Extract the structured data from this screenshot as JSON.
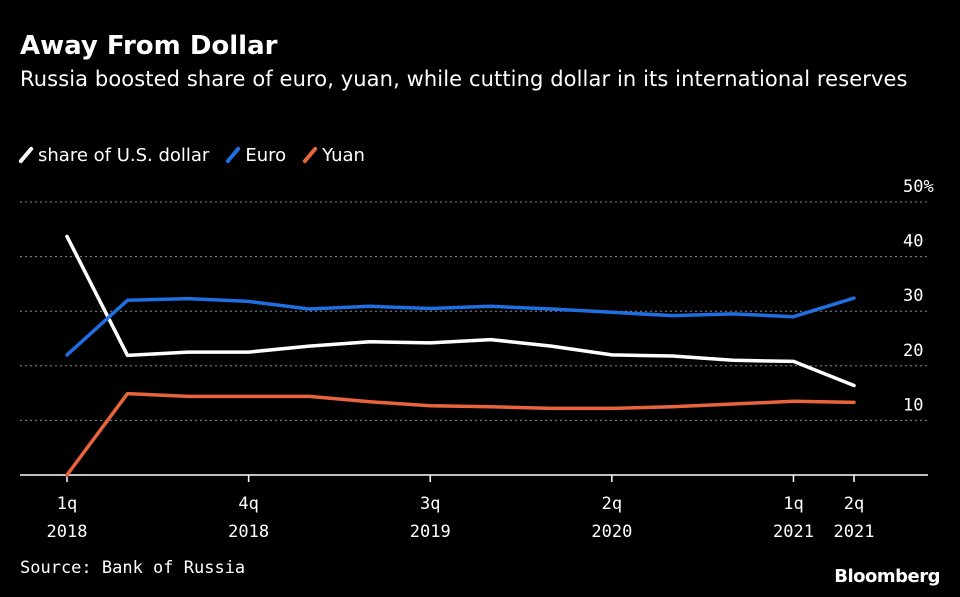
{
  "header": {
    "title": "Away From Dollar",
    "subtitle": "Russia boosted share of euro, yuan, while cutting dollar in its international reserves"
  },
  "legend": [
    {
      "label": "share of U.S. dollar",
      "color": "#ffffff"
    },
    {
      "label": "Euro",
      "color": "#1f6fe0"
    },
    {
      "label": "Yuan",
      "color": "#e8643c"
    }
  ],
  "footer": {
    "source": "Source: Bank of Russia",
    "brand": "Bloomberg"
  },
  "chart_data": {
    "type": "line",
    "x": [
      "1q 2018",
      "2q 2018",
      "3q 2018",
      "4q 2018",
      "1q 2019",
      "2q 2019",
      "3q 2019",
      "4q 2019",
      "1q 2020",
      "2q 2020",
      "3q 2020",
      "4q 2020",
      "1q 2021",
      "2q 2021"
    ],
    "xticks": [
      {
        "top": "1q",
        "bottom": "2018",
        "index": 0
      },
      {
        "top": "4q",
        "bottom": "2018",
        "index": 3
      },
      {
        "top": "3q",
        "bottom": "2019",
        "index": 6
      },
      {
        "top": "2q",
        "bottom": "2020",
        "index": 9
      },
      {
        "top": "1q",
        "bottom": "2021",
        "index": 12
      },
      {
        "top": "2q",
        "bottom": "2021",
        "index": 13
      }
    ],
    "yticks": [
      "10",
      "20",
      "30",
      "40",
      "50%"
    ],
    "ylim": [
      0,
      50
    ],
    "grid": true,
    "legend_position": "top-left",
    "series": [
      {
        "name": "share of U.S. dollar",
        "color": "#ffffff",
        "values": [
          43.7,
          21.9,
          22.5,
          22.5,
          23.6,
          24.4,
          24.2,
          24.8,
          23.6,
          22.0,
          21.8,
          21.0,
          20.8,
          16.4
        ]
      },
      {
        "name": "Euro",
        "color": "#1f6fe0",
        "values": [
          22.0,
          32.0,
          32.3,
          31.8,
          30.4,
          30.9,
          30.5,
          30.9,
          30.4,
          29.8,
          29.2,
          29.5,
          29.0,
          32.4
        ]
      },
      {
        "name": "Yuan",
        "color": "#e8643c",
        "values": [
          0.0,
          14.9,
          14.4,
          14.4,
          14.4,
          13.4,
          12.7,
          12.5,
          12.2,
          12.2,
          12.5,
          13.0,
          13.5,
          13.3
        ]
      }
    ]
  }
}
